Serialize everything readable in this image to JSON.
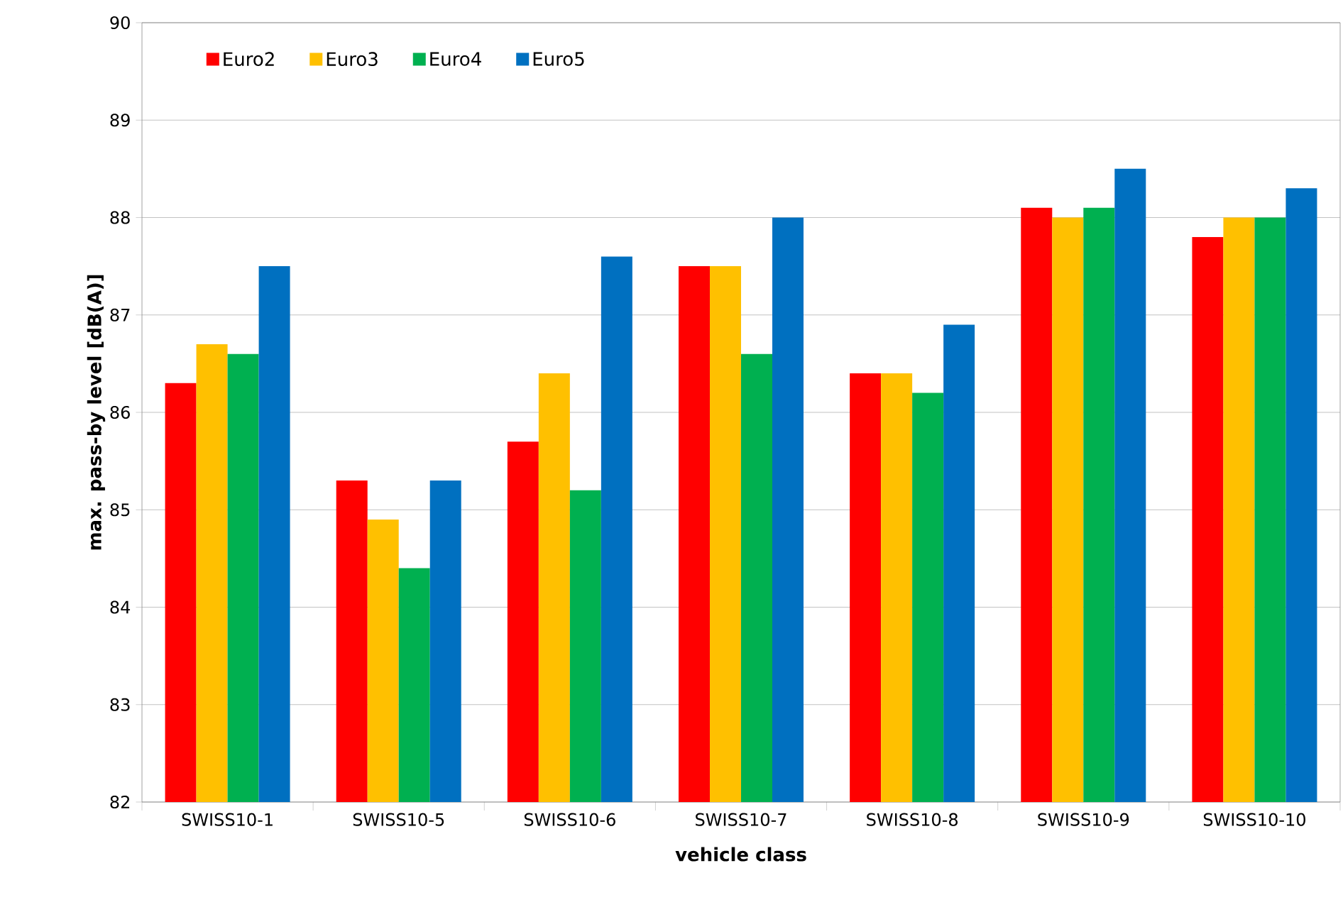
{
  "chart_data": {
    "type": "bar",
    "xlabel": "vehicle class",
    "ylabel": "max. pass-by level [dB(A)]",
    "categories": [
      "SWISS10-1",
      "SWISS10-5",
      "SWISS10-6",
      "SWISS10-7",
      "SWISS10-8",
      "SWISS10-9",
      "SWISS10-10"
    ],
    "series": [
      {
        "name": "Euro2",
        "color": "#ff0000",
        "values": [
          86.3,
          85.3,
          85.7,
          87.5,
          86.4,
          88.1,
          87.8
        ]
      },
      {
        "name": "Euro3",
        "color": "#ffc000",
        "values": [
          86.7,
          84.9,
          86.4,
          87.5,
          86.4,
          88.0,
          88.0
        ]
      },
      {
        "name": "Euro4",
        "color": "#00b050",
        "values": [
          86.6,
          84.4,
          85.2,
          86.6,
          86.2,
          88.1,
          88.0
        ]
      },
      {
        "name": "Euro5",
        "color": "#0070c0",
        "values": [
          87.5,
          85.3,
          87.6,
          88.0,
          86.9,
          88.5,
          88.3
        ]
      }
    ],
    "ylim": [
      82,
      90
    ],
    "yticks": [
      82,
      83,
      84,
      85,
      86,
      87,
      88,
      89,
      90
    ],
    "grid": "y",
    "legend": "top left"
  }
}
